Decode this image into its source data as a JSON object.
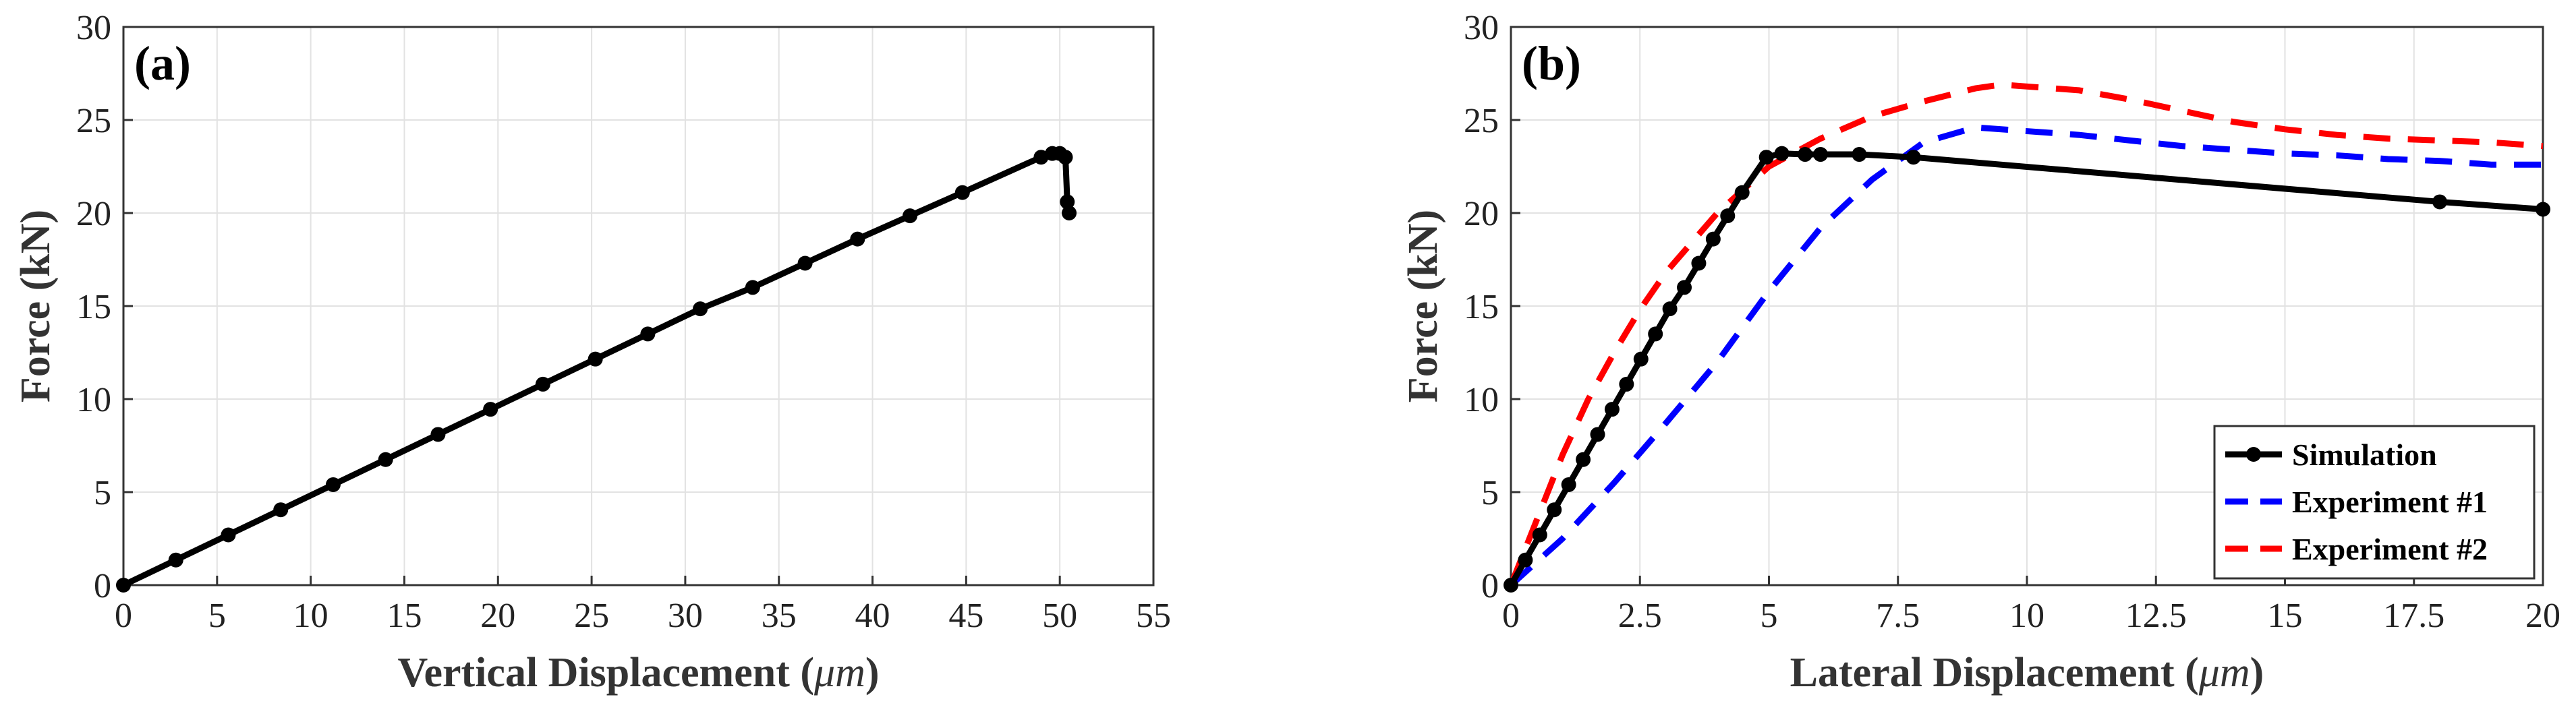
{
  "chart_data": [
    {
      "type": "line",
      "panel_label": "(a)",
      "xlabel": "Vertical Displacement (",
      "xlabel_unit": "μm",
      "xlabel_close": ")",
      "ylabel": "Force (kN)",
      "xlim": [
        0,
        55
      ],
      "ylim": [
        0,
        30
      ],
      "xticks": [
        "0",
        "5",
        "10",
        "15",
        "20",
        "25",
        "30",
        "35",
        "40",
        "45",
        "50",
        "55"
      ],
      "yticks": [
        "0",
        "5",
        "10",
        "15",
        "20",
        "25",
        "30"
      ],
      "grid": true,
      "series": [
        {
          "name": "Simulation",
          "color": "#000000",
          "style": "solid-markers",
          "x": [
            0,
            2.8,
            5.6,
            8.4,
            11.2,
            14.0,
            16.8,
            19.6,
            22.4,
            25.2,
            28.0,
            30.8,
            33.6,
            36.4,
            39.2,
            42.0,
            44.8,
            49.0,
            49.6,
            50.0,
            50.3,
            50.4,
            50.5
          ],
          "y": [
            0,
            1.35,
            2.7,
            4.05,
            5.4,
            6.75,
            8.1,
            9.45,
            10.8,
            12.15,
            13.5,
            14.85,
            16.0,
            17.3,
            18.6,
            19.85,
            21.1,
            23.0,
            23.2,
            23.2,
            23.0,
            20.6,
            20.0
          ]
        }
      ]
    },
    {
      "type": "line",
      "panel_label": "(b)",
      "xlabel": "Lateral Displacement (",
      "xlabel_unit": "μm",
      "xlabel_close": ")",
      "ylabel": "Force (kN)",
      "xlim": [
        0,
        20
      ],
      "ylim": [
        0,
        30
      ],
      "xticks": [
        "0",
        "2.5",
        "5",
        "7.5",
        "10",
        "12.5",
        "15",
        "17.5",
        "20"
      ],
      "yticks": [
        "0",
        "5",
        "10",
        "15",
        "20",
        "25",
        "30"
      ],
      "grid": true,
      "legend_position": "bottom-right",
      "series": [
        {
          "name": "Simulation",
          "color": "#000000",
          "style": "solid-markers",
          "x": [
            0,
            0.28,
            0.56,
            0.84,
            1.12,
            1.4,
            1.68,
            1.96,
            2.24,
            2.52,
            2.8,
            3.08,
            3.36,
            3.64,
            3.92,
            4.2,
            4.48,
            4.95,
            5.25,
            5.7,
            6.0,
            6.75,
            7.8,
            18.0,
            20.0
          ],
          "y": [
            0,
            1.35,
            2.7,
            4.05,
            5.4,
            6.75,
            8.1,
            9.45,
            10.8,
            12.15,
            13.5,
            14.85,
            16.0,
            17.3,
            18.6,
            19.85,
            21.1,
            23.0,
            23.2,
            23.15,
            23.15,
            23.15,
            23.0,
            20.6,
            20.2
          ]
        },
        {
          "name": "Experiment #1",
          "color": "#0000ff",
          "style": "dashed",
          "x": [
            0,
            1,
            2,
            3,
            4,
            5,
            6,
            7,
            8,
            9,
            10,
            11,
            12,
            13,
            14,
            15,
            16,
            17,
            18,
            19,
            20
          ],
          "y": [
            0,
            2.5,
            5.5,
            8.7,
            12.0,
            15.8,
            19.2,
            21.8,
            23.8,
            24.6,
            24.4,
            24.2,
            23.9,
            23.6,
            23.4,
            23.2,
            23.1,
            22.9,
            22.8,
            22.6,
            22.6
          ]
        },
        {
          "name": "Experiment #2",
          "color": "#ff0000",
          "style": "dashed",
          "x": [
            0,
            0.5,
            1,
            1.5,
            2,
            2.5,
            3,
            4,
            5,
            6,
            7,
            8,
            9,
            9.5,
            10,
            11,
            12,
            13,
            14,
            15,
            16,
            17,
            18,
            19,
            20
          ],
          "y": [
            0,
            3.5,
            7.0,
            10.0,
            12.5,
            14.8,
            16.8,
            20.0,
            22.5,
            24.0,
            25.2,
            26.0,
            26.7,
            26.9,
            26.8,
            26.6,
            26.1,
            25.5,
            24.9,
            24.5,
            24.2,
            24.0,
            23.9,
            23.8,
            23.6
          ]
        }
      ]
    }
  ]
}
